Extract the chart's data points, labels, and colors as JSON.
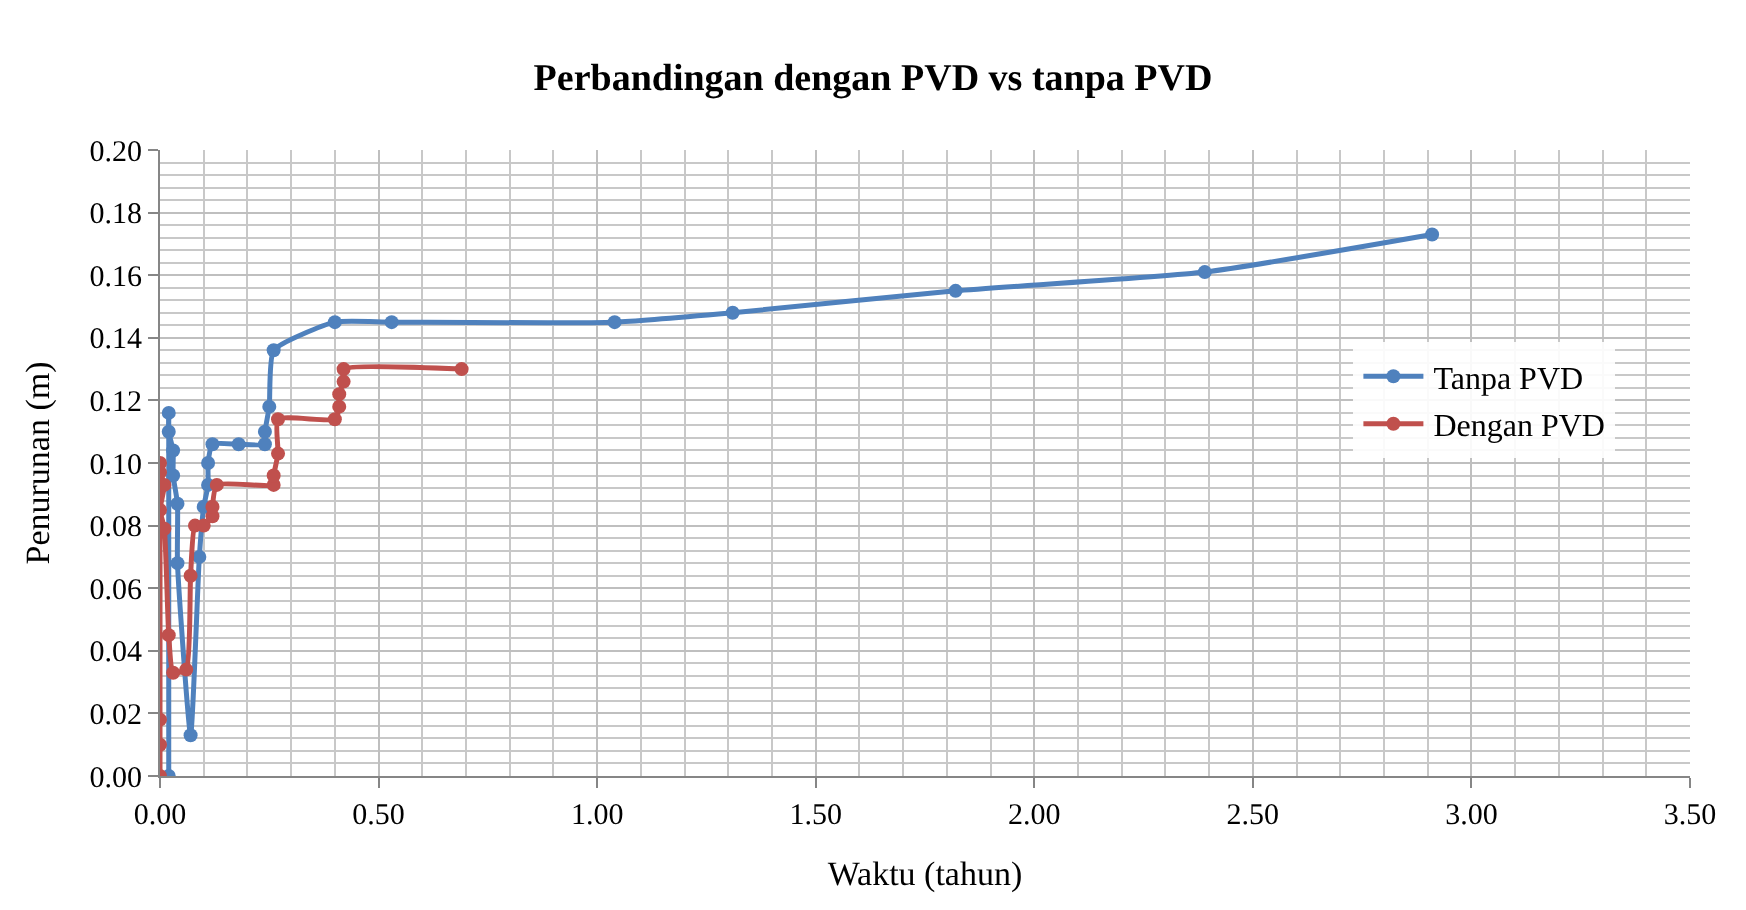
{
  "chart_data": {
    "type": "line",
    "title": "Perbandingan dengan PVD vs tanpa PVD",
    "xlabel": "Waktu (tahun)",
    "ylabel": "Penurunan (m)",
    "xlim": [
      0,
      3.5
    ],
    "xticks": [
      {
        "value": 0,
        "label": "0.00"
      },
      {
        "value": 0.5,
        "label": "0.50"
      },
      {
        "value": 1,
        "label": "1.00"
      },
      {
        "value": 1.5,
        "label": "1.50"
      },
      {
        "value": 2,
        "label": "2.00"
      },
      {
        "value": 2.5,
        "label": "2.50"
      },
      {
        "value": 3,
        "label": "3.00"
      },
      {
        "value": 3.5,
        "label": "3.50"
      }
    ],
    "ylim": [
      0,
      0.2
    ],
    "yticks": [
      {
        "value": 0,
        "label": "0.00"
      },
      {
        "value": 0.02,
        "label": "0.02"
      },
      {
        "value": 0.04,
        "label": "0.04"
      },
      {
        "value": 0.06,
        "label": "0.06"
      },
      {
        "value": 0.08,
        "label": "0.08"
      },
      {
        "value": 0.1,
        "label": "0.10"
      },
      {
        "value": 0.12,
        "label": "0.12"
      },
      {
        "value": 0.14,
        "label": "0.14"
      },
      {
        "value": 0.16,
        "label": "0.16"
      },
      {
        "value": 0.18,
        "label": "0.18"
      },
      {
        "value": 0.2,
        "label": "0.20"
      }
    ],
    "grid": true,
    "legend": "right",
    "marker": "circle",
    "line_style": "solid",
    "series": [
      {
        "name": "Tanpa PVD",
        "color": "#4f81bd",
        "x": [
          0.02,
          0.02,
          0.02,
          0.03,
          0.03,
          0.04,
          0.04,
          0.07,
          0.09,
          0.1,
          0.11,
          0.11,
          0.12,
          0.18,
          0.24,
          0.24,
          0.25,
          0.26,
          0.4,
          0.53,
          1.04,
          1.31,
          1.82,
          2.39,
          2.91
        ],
        "values": [
          0.0,
          0.116,
          0.11,
          0.104,
          0.096,
          0.087,
          0.068,
          0.013,
          0.07,
          0.086,
          0.093,
          0.1,
          0.106,
          0.106,
          0.106,
          0.11,
          0.118,
          0.136,
          0.145,
          0.145,
          0.145,
          0.148,
          0.155,
          0.161,
          0.173
        ]
      },
      {
        "name": "Dengan PVD",
        "color": "#c0504d",
        "x": [
          0.0,
          0.0,
          0.0,
          0.0,
          0.0,
          0.01,
          0.0,
          0.01,
          0.02,
          0.03,
          0.06,
          0.07,
          0.08,
          0.1,
          0.12,
          0.12,
          0.13,
          0.26,
          0.26,
          0.27,
          0.27,
          0.4,
          0.41,
          0.41,
          0.42,
          0.42,
          0.69
        ],
        "values": [
          0.0,
          0.01,
          0.018,
          0.1,
          0.097,
          0.093,
          0.085,
          0.079,
          0.045,
          0.033,
          0.034,
          0.064,
          0.08,
          0.08,
          0.083,
          0.086,
          0.093,
          0.093,
          0.096,
          0.103,
          0.114,
          0.114,
          0.118,
          0.122,
          0.126,
          0.13,
          0.13
        ]
      }
    ]
  }
}
